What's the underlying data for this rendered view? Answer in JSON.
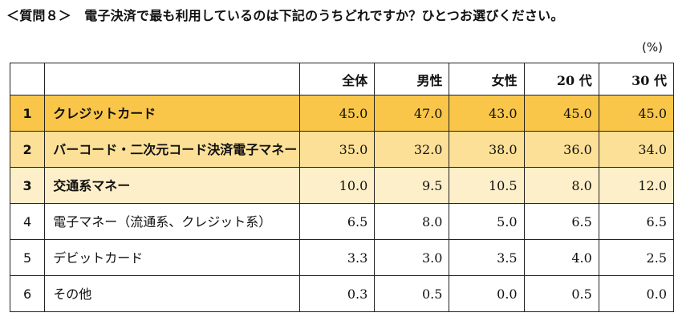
{
  "title": "＜質問８＞　電子決済で最も利用しているのは下記のうちどれですか？ひとつお選びください。",
  "unit": "(%)",
  "columns": [
    "全体",
    "男性",
    "女性",
    "20 代",
    "30 代"
  ],
  "highlight_colors": [
    "#f9c64a",
    "#fde097",
    "#fdefc9"
  ],
  "rows": [
    {
      "rank": "1",
      "item": "クレジットカード",
      "values": [
        "45.0",
        "47.0",
        "43.0",
        "45.0",
        "45.0"
      ]
    },
    {
      "rank": "2",
      "item": "バーコード・二次元コード決済電子マネー",
      "values": [
        "35.0",
        "32.0",
        "38.0",
        "36.0",
        "34.0"
      ]
    },
    {
      "rank": "3",
      "item": "交通系マネー",
      "values": [
        "10.0",
        "9.5",
        "10.5",
        "8.0",
        "12.0"
      ]
    },
    {
      "rank": "4",
      "item": "電子マネー（流通系、クレジット系）",
      "values": [
        "6.5",
        "8.0",
        "5.0",
        "6.5",
        "6.5"
      ]
    },
    {
      "rank": "5",
      "item": "デビットカード",
      "values": [
        "3.3",
        "3.0",
        "3.5",
        "4.0",
        "2.5"
      ]
    },
    {
      "rank": "6",
      "item": "その他",
      "values": [
        "0.3",
        "0.5",
        "0.0",
        "0.5",
        "0.0"
      ]
    }
  ]
}
